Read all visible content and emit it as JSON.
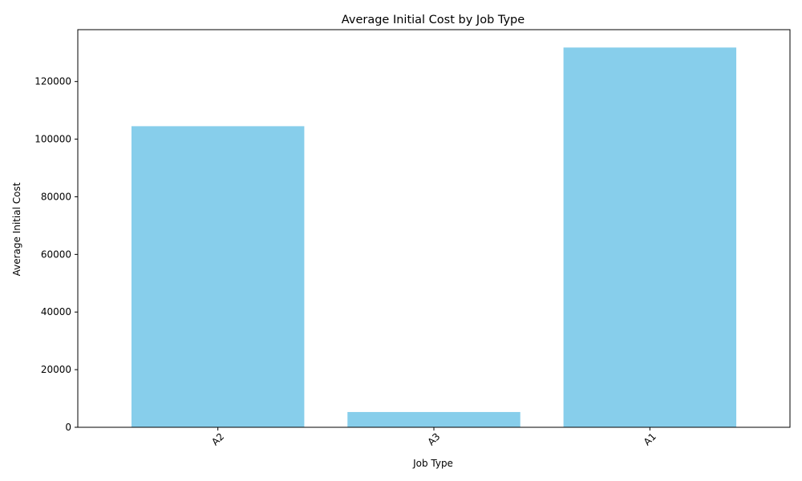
{
  "chart_data": {
    "type": "bar",
    "title": "Average Initial Cost by Job Type",
    "xlabel": "Job Type",
    "ylabel": "Average Initial Cost",
    "categories": [
      "A2",
      "A3",
      "A1"
    ],
    "values": [
      104500,
      5300,
      131800
    ],
    "ylim": [
      0,
      138000
    ],
    "yticks": [
      0,
      20000,
      40000,
      60000,
      80000,
      100000,
      120000
    ],
    "grid": false,
    "legend": "none",
    "bar_color": "#87CEEB",
    "x_tick_rotation_deg": 45
  }
}
